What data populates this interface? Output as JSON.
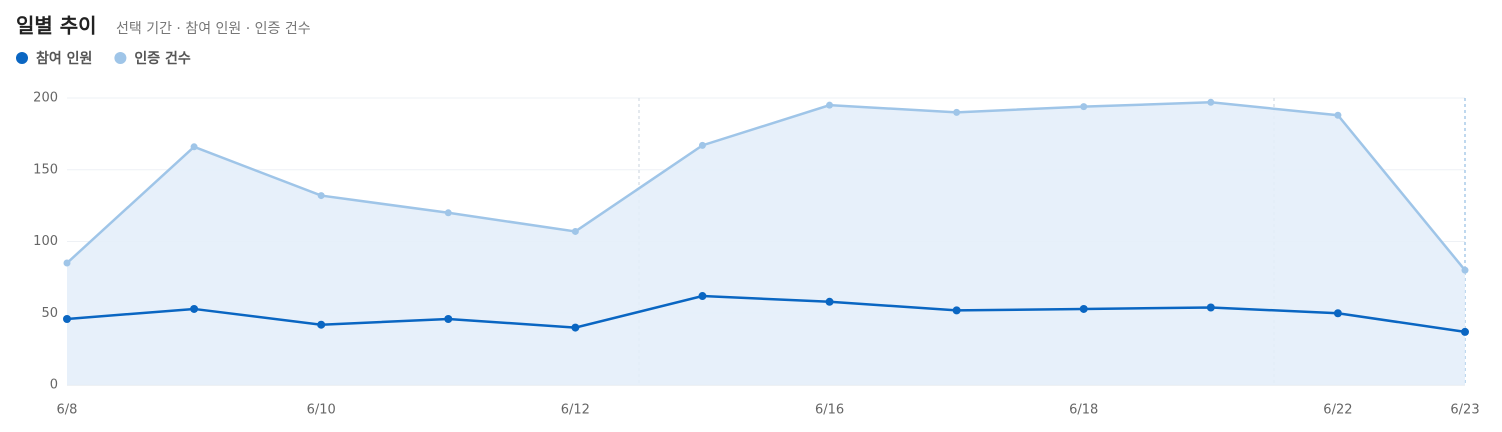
{
  "chart_data": {
    "type": "line",
    "title": "일별 추이",
    "subtitle": "선택 기간 · 참여 인원 · 인증 건수",
    "categories": [
      "6/8",
      null,
      "6/10",
      null,
      "6/12",
      null,
      "6/16",
      null,
      "6/18",
      null,
      "6/22",
      "6/23"
    ],
    "series": [
      {
        "name": "참여 인원",
        "color": "#0a66c2",
        "values": [
          46,
          53,
          42,
          46,
          40,
          62,
          58,
          52,
          53,
          54,
          50,
          37
        ]
      },
      {
        "name": "인증 건수",
        "color": "#9fc5e8",
        "fill": "#e4eef9",
        "values": [
          85,
          166,
          132,
          120,
          107,
          167,
          195,
          190,
          194,
          197,
          188,
          80
        ]
      }
    ],
    "ylim": [
      0,
      200
    ],
    "yticks": [
      0,
      50,
      100,
      150,
      200
    ],
    "grid": true
  }
}
